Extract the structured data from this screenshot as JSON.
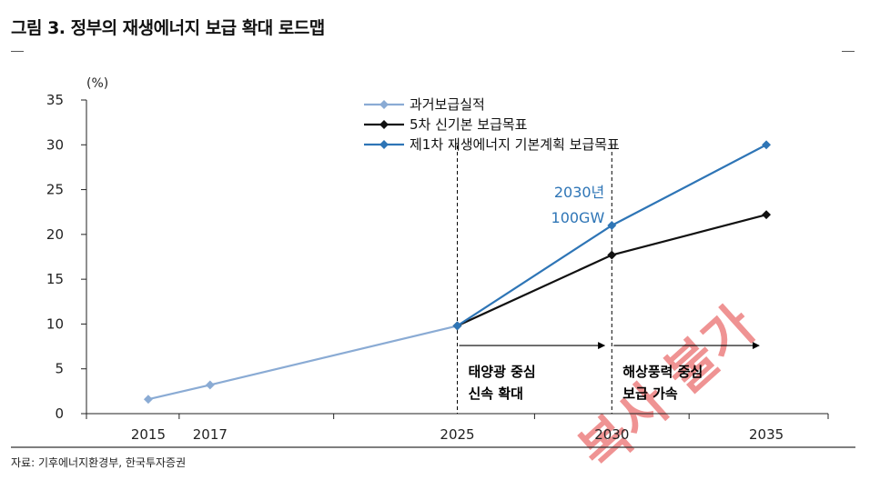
{
  "figure": {
    "title": "그림 3. 정부의 재생에너지 보급 확대 로드맵",
    "source": "자료: 기후에너지환경부, 한국투자증권"
  },
  "chart_data": {
    "type": "line",
    "unit_label": "(%)",
    "x": [
      2015,
      2017,
      2025,
      2030,
      2035
    ],
    "xlim": [
      2013,
      2037
    ],
    "ylim": [
      0,
      35
    ],
    "y_ticks": [
      0,
      5,
      10,
      15,
      20,
      25,
      30,
      35
    ],
    "grid": false,
    "legend_position": "top-center",
    "series": [
      {
        "name": "과거보급실적",
        "color": "#8aabd4",
        "points": [
          [
            2015,
            1.6
          ],
          [
            2017,
            3.2
          ],
          [
            2025,
            9.8
          ]
        ]
      },
      {
        "name": "5차 신기본 보급목표",
        "color": "#111111",
        "points": [
          [
            2025,
            9.8
          ],
          [
            2030,
            17.7
          ],
          [
            2035,
            22.2
          ]
        ]
      },
      {
        "name": "제1차 재생에너지 기본계획 보급목표",
        "color": "#2e75b6",
        "points": [
          [
            2025,
            9.8
          ],
          [
            2030,
            21.0
          ],
          [
            2035,
            30.0
          ]
        ]
      }
    ],
    "vlines": [
      2025,
      2030
    ],
    "annotations": [
      {
        "lines": [
          "2030년",
          "100GW"
        ],
        "color": "#2e75b6",
        "at": [
          2030,
          21.0
        ]
      }
    ],
    "phases": [
      {
        "from": 2025,
        "to": 2030,
        "lines": [
          "태양광 중심",
          "신속 확대"
        ]
      },
      {
        "from": 2030,
        "to": 2035,
        "lines": [
          "해상풍력 중심",
          "보급 가속"
        ]
      }
    ],
    "watermark": "복사 불가"
  }
}
